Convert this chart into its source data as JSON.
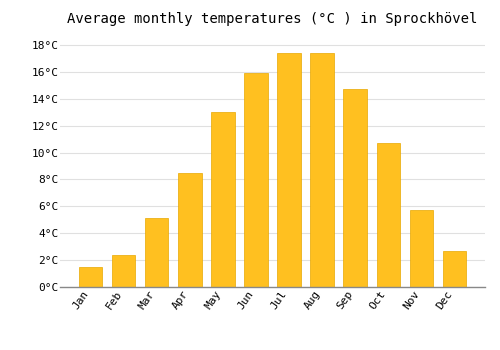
{
  "title": "Average monthly temperatures (°C ) in Sprockhövel",
  "months": [
    "Jan",
    "Feb",
    "Mar",
    "Apr",
    "May",
    "Jun",
    "Jul",
    "Aug",
    "Sep",
    "Oct",
    "Nov",
    "Dec"
  ],
  "values": [
    1.5,
    2.4,
    5.1,
    8.5,
    13.0,
    15.9,
    17.4,
    17.4,
    14.7,
    10.7,
    5.7,
    2.7
  ],
  "bar_color": "#FFC020",
  "bar_edge_color": "#E8A800",
  "background_color": "#FFFFFF",
  "plot_bg_color": "#FFFFFF",
  "grid_color": "#E0E0E0",
  "ylim": [
    0,
    19
  ],
  "yticks": [
    0,
    2,
    4,
    6,
    8,
    10,
    12,
    14,
    16,
    18
  ],
  "ytick_labels": [
    "0°C",
    "2°C",
    "4°C",
    "6°C",
    "8°C",
    "10°C",
    "12°C",
    "14°C",
    "16°C",
    "18°C"
  ],
  "title_fontsize": 10,
  "tick_fontsize": 8,
  "bar_width": 0.7
}
